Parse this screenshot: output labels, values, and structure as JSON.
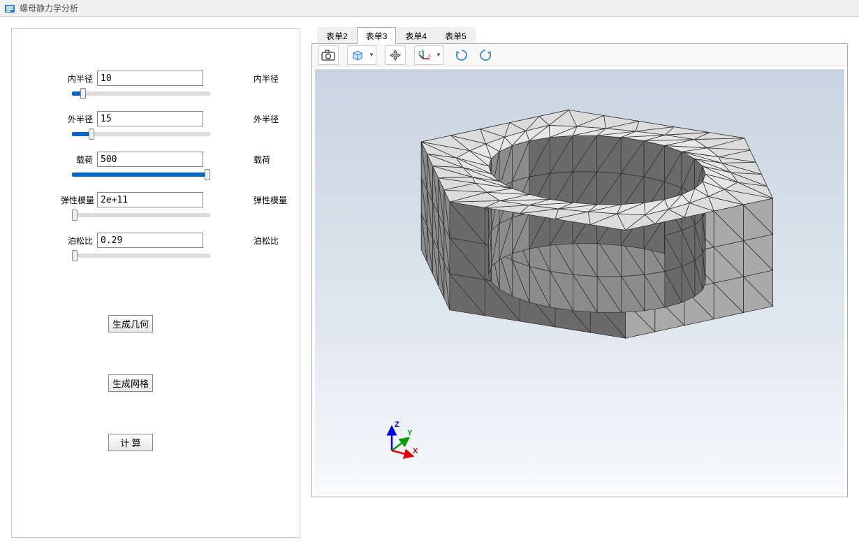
{
  "window": {
    "title": "螺母静力学分析",
    "icon_color": "#0066cc"
  },
  "params": [
    {
      "label": "内半径",
      "value": "10",
      "right_label": "内半径",
      "slider_pct": 8
    },
    {
      "label": "外半径",
      "value": "15",
      "right_label": "外半径",
      "slider_pct": 14
    },
    {
      "label": "载荷",
      "value": "500",
      "right_label": "载荷",
      "slider_pct": 98
    },
    {
      "label": "弹性模量",
      "value": "2e+11",
      "right_label": "弹性模量",
      "slider_pct": 2
    },
    {
      "label": "泊松比",
      "value": "0.29",
      "right_label": "泊松比",
      "slider_pct": 2
    }
  ],
  "buttons": {
    "generate_geometry": "生成几何",
    "generate_mesh": "生成网格",
    "compute": "计 算"
  },
  "tabs": [
    {
      "label": "表单2",
      "active": false
    },
    {
      "label": "表单3",
      "active": true
    },
    {
      "label": "表单4",
      "active": false
    },
    {
      "label": "表单5",
      "active": false
    }
  ],
  "triad": {
    "x": "X",
    "y": "Y",
    "z": "Z",
    "x_color": "#e00000",
    "y_color": "#00a000",
    "z_color": "#0000e0"
  },
  "viewport": {
    "bg_top": "#c9d4e0",
    "bg_bottom": "#f8fafc",
    "mesh_stroke": "#333333",
    "face_colors": [
      "#6a6a6b",
      "#8c8c8d",
      "#a9a9aa",
      "#bcbcbd",
      "#cfcfd0",
      "#dcdcdd",
      "#e6e6e7"
    ]
  }
}
